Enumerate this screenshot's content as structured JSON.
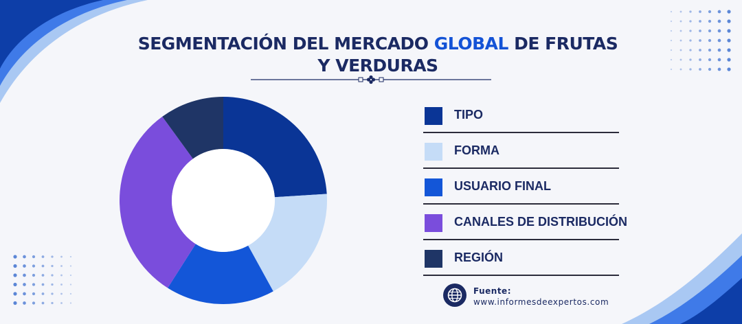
{
  "title": {
    "part1": "SEGMENTACIÓN DEL MERCADO ",
    "highlight": "GLOBAL",
    "part2": " DE FRUTAS Y VERDURAS"
  },
  "colors": {
    "navy": "#1b2a63",
    "accent_blue": "#1453d6",
    "background": "#f5f6fa"
  },
  "chart_data": {
    "type": "pie",
    "style": "donut",
    "title": "",
    "categories": [
      "TIPO",
      "FORMA",
      "USUARIO FINAL",
      "CANALES DE DISTRIBUCIÓN",
      "REGIÓN"
    ],
    "values": [
      24,
      18,
      17,
      31,
      10
    ],
    "colors": [
      "#0a3596",
      "#c5dcf7",
      "#1356d8",
      "#7a4ddc",
      "#1f3566"
    ],
    "legend_position": "right"
  },
  "source": {
    "label": "Fuente:",
    "url": "www.informesdeexpertos.com",
    "icon": "globe-icon"
  }
}
